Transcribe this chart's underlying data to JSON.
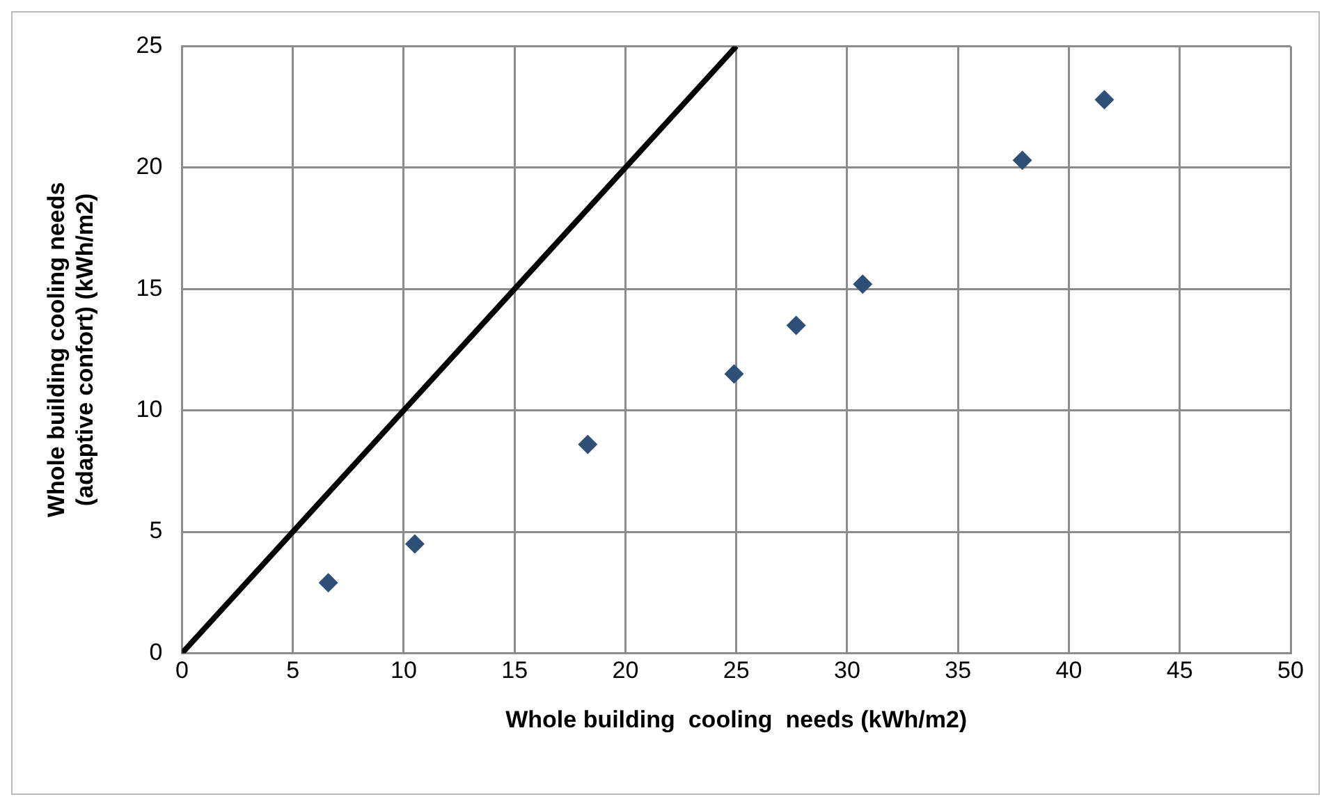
{
  "chart_data": {
    "type": "scatter",
    "xlabel": "Whole building  cooling  needs (kWh/m2)",
    "ylabel": "Whole building cooling needs (adaptive confort) (kWh/m2)",
    "series": [
      {
        "type": "scatter",
        "color": "#2e5077",
        "marker": "diamond",
        "x": [
          6.6,
          10.5,
          18.3,
          24.9,
          27.7,
          30.7,
          37.9,
          41.6
        ],
        "values": [
          2.9,
          4.5,
          8.6,
          11.5,
          13.5,
          15.2,
          20.3,
          22.8
        ]
      },
      {
        "type": "line",
        "color": "#000000",
        "marker": "none",
        "x": [
          0,
          25
        ],
        "values": [
          0,
          25
        ]
      }
    ],
    "xlim": [
      0,
      50
    ],
    "xticks": [
      0,
      5,
      10,
      15,
      20,
      25,
      30,
      35,
      40,
      45,
      50
    ],
    "ylim": [
      0,
      25
    ],
    "yticks": [
      0,
      5,
      10,
      15,
      20,
      25
    ],
    "grid": true,
    "legend": false
  }
}
